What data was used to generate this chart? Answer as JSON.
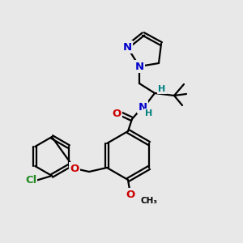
{
  "bg_color": "#e8e8e8",
  "bond_color": "#000000",
  "bond_width": 1.6,
  "atom_colors": {
    "N": "#0000cc",
    "O": "#cc0000",
    "Cl": "#228B22",
    "H": "#008080",
    "C": "#000000"
  },
  "font_size": 8.5,
  "fig_size": [
    3.0,
    3.0
  ],
  "dpi": 100
}
